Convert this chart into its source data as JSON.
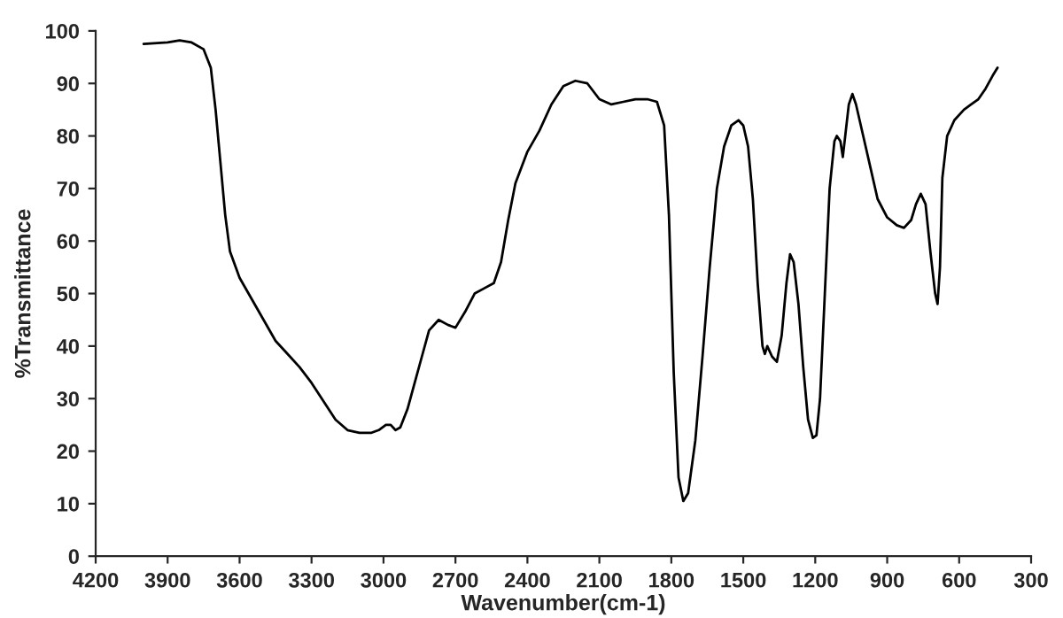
{
  "chart_data": {
    "type": "line",
    "xlabel": "Wavenumber(cm-1)",
    "ylabel": "%Transmittance",
    "xlim": [
      4200,
      300
    ],
    "ylim": [
      0,
      100
    ],
    "xticks": [
      4200,
      3900,
      3600,
      3300,
      3000,
      2700,
      2400,
      2100,
      1800,
      1500,
      1200,
      900,
      600,
      300
    ],
    "yticks": [
      0,
      10,
      20,
      30,
      40,
      50,
      60,
      70,
      80,
      90,
      100
    ],
    "grid": false,
    "legend": false,
    "marker": "none",
    "line_style": "solid",
    "series": [
      {
        "color": "#000000",
        "x": [
          4000,
          3900,
          3850,
          3800,
          3750,
          3720,
          3700,
          3680,
          3660,
          3640,
          3600,
          3550,
          3500,
          3450,
          3400,
          3350,
          3300,
          3250,
          3200,
          3150,
          3100,
          3050,
          3020,
          2990,
          2970,
          2950,
          2930,
          2900,
          2870,
          2840,
          2810,
          2770,
          2730,
          2700,
          2660,
          2620,
          2580,
          2540,
          2510,
          2480,
          2450,
          2400,
          2350,
          2300,
          2250,
          2200,
          2150,
          2100,
          2050,
          2000,
          1950,
          1900,
          1860,
          1830,
          1810,
          1790,
          1770,
          1750,
          1730,
          1700,
          1670,
          1640,
          1610,
          1580,
          1550,
          1520,
          1500,
          1480,
          1460,
          1440,
          1420,
          1410,
          1400,
          1380,
          1360,
          1340,
          1320,
          1305,
          1290,
          1270,
          1250,
          1230,
          1210,
          1195,
          1180,
          1160,
          1140,
          1120,
          1110,
          1095,
          1085,
          1075,
          1060,
          1045,
          1030,
          1000,
          970,
          940,
          900,
          860,
          830,
          800,
          780,
          760,
          740,
          720,
          700,
          690,
          680,
          670,
          650,
          620,
          580,
          550,
          520,
          490,
          460,
          440
        ],
        "values": [
          97.5,
          97.8,
          98.2,
          97.8,
          96.5,
          93,
          85,
          75,
          65,
          58,
          53,
          49,
          45,
          41,
          38.5,
          36,
          33,
          29.5,
          26,
          24,
          23.5,
          23.5,
          24,
          25,
          25,
          24,
          24.5,
          28,
          33,
          38,
          43,
          45,
          44,
          43.5,
          46.5,
          50,
          51,
          52,
          56,
          64,
          71,
          77,
          81,
          86,
          89.5,
          90.5,
          90,
          87,
          86,
          86.5,
          87,
          87,
          86.5,
          82,
          65,
          35,
          15,
          10.5,
          12,
          22,
          38,
          55,
          70,
          78,
          82,
          83,
          82,
          78,
          68,
          52,
          40,
          38.5,
          40,
          38,
          37,
          42,
          52,
          57.5,
          56,
          48,
          36,
          26,
          22.5,
          23,
          30,
          50,
          70,
          79,
          80,
          79,
          76,
          80,
          86,
          88,
          86,
          80,
          74,
          68,
          64.5,
          63,
          62.5,
          64,
          67,
          69,
          67,
          58,
          50,
          48,
          55,
          72,
          80,
          83,
          85,
          86,
          87,
          89,
          91.5,
          93
        ]
      }
    ]
  }
}
